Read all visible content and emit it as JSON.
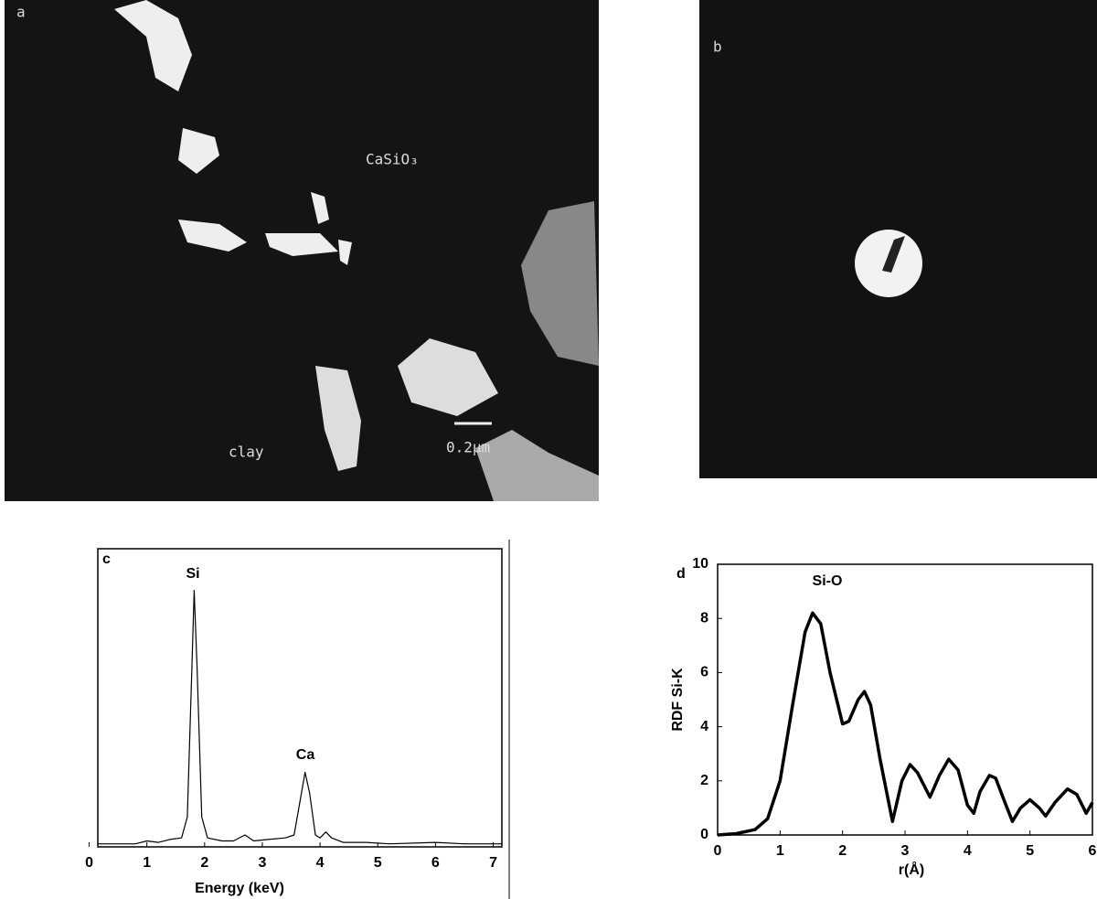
{
  "micrographs": [
    {
      "label": "a",
      "annotations": [
        "CaSiO₃",
        "clay",
        "0.2µm"
      ]
    },
    {
      "label": "b"
    }
  ],
  "chart_data": [
    {
      "type": "line",
      "label": "c",
      "xlabel": "Energy  (keV)",
      "annotations": [
        "Si",
        "Ca"
      ],
      "x": [
        0.15,
        0.8,
        1.0,
        1.2,
        1.4,
        1.6,
        1.7,
        1.78,
        1.82,
        1.87,
        1.95,
        2.05,
        2.3,
        2.5,
        2.7,
        2.85,
        3.1,
        3.4,
        3.55,
        3.65,
        3.74,
        3.82,
        3.92,
        4.0,
        4.1,
        4.2,
        4.4,
        4.8,
        5.2,
        6.0,
        6.5,
        7.15
      ],
      "values": [
        1,
        1,
        2,
        1.5,
        2.5,
        3,
        10,
        60,
        86,
        60,
        10,
        3,
        2,
        2,
        4,
        2,
        2.5,
        3,
        4,
        15,
        25,
        18,
        4,
        3,
        5,
        3,
        1.5,
        1.5,
        1,
        1.5,
        1,
        1
      ],
      "color": "#000000",
      "xlim": [
        0.15,
        7.15
      ],
      "ylim": [
        0,
        100
      ],
      "xticks": [
        0,
        1,
        2,
        3,
        4,
        5,
        6,
        7
      ]
    },
    {
      "type": "line",
      "label": "d",
      "xlabel": "r(Å)",
      "ylabel": "RDF Si-K",
      "annotations": [
        "Si-O"
      ],
      "x": [
        0,
        0.3,
        0.6,
        0.8,
        1.0,
        1.2,
        1.4,
        1.52,
        1.65,
        1.8,
        2.0,
        2.1,
        2.25,
        2.35,
        2.45,
        2.6,
        2.8,
        2.95,
        3.08,
        3.2,
        3.4,
        3.55,
        3.7,
        3.85,
        4.0,
        4.1,
        4.2,
        4.35,
        4.45,
        4.6,
        4.72,
        4.85,
        5.0,
        5.15,
        5.25,
        5.4,
        5.6,
        5.75,
        5.9,
        6.0
      ],
      "values": [
        0,
        0.05,
        0.2,
        0.6,
        2,
        4.8,
        7.5,
        8.2,
        7.8,
        6,
        4.1,
        4.2,
        5,
        5.3,
        4.8,
        2.8,
        0.5,
        2,
        2.6,
        2.3,
        1.4,
        2.2,
        2.8,
        2.4,
        1.1,
        0.8,
        1.6,
        2.2,
        2.1,
        1.2,
        0.5,
        1.0,
        1.3,
        1.0,
        0.7,
        1.2,
        1.7,
        1.5,
        0.8,
        1.2
      ],
      "color": "#000000",
      "xlim": [
        0,
        6
      ],
      "ylim": [
        0,
        10
      ],
      "xticks": [
        0,
        1,
        2,
        3,
        4,
        5,
        6
      ],
      "yticks": [
        0,
        2,
        4,
        6,
        8,
        10
      ]
    }
  ]
}
